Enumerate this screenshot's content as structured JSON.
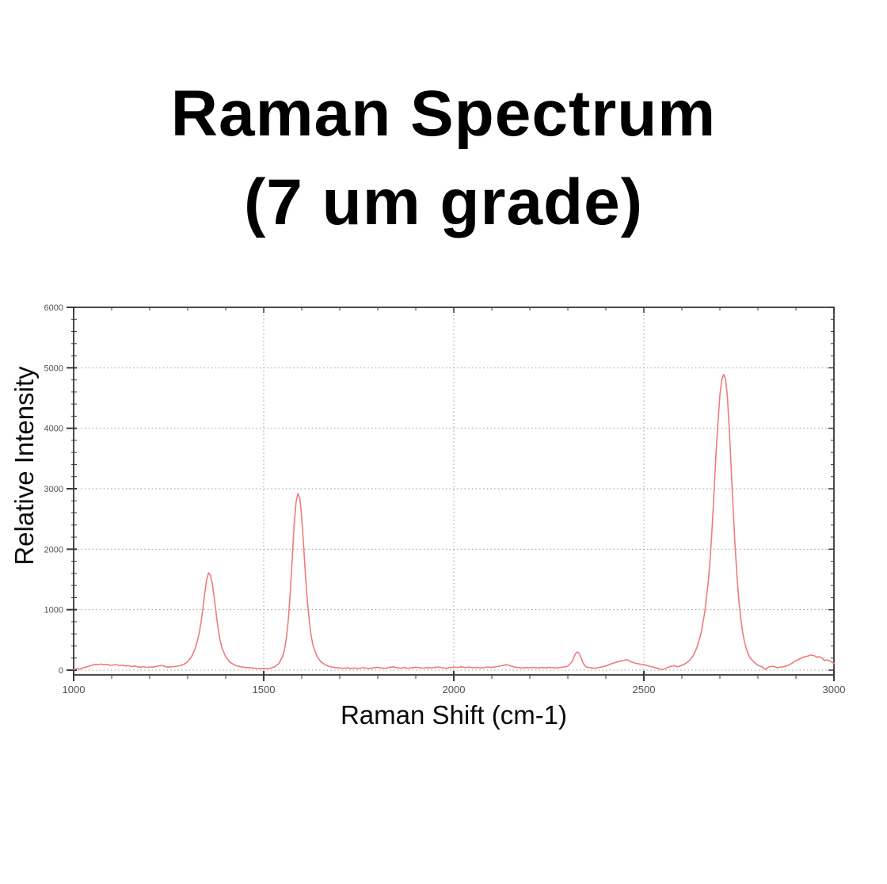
{
  "title": {
    "line1": "Raman Spectrum",
    "line2": "(7 um grade)"
  },
  "chart_data": {
    "type": "line",
    "title": "Raman Spectrum (7 um grade)",
    "xlabel": "Raman Shift (cm-1)",
    "ylabel": "Relative Intensity",
    "xlim": [
      1000,
      3000
    ],
    "ylim": [
      0,
      6000
    ],
    "x_major_ticks": [
      1000,
      1500,
      2000,
      2500,
      3000
    ],
    "x_minor_step": 100,
    "y_major_ticks": [
      0,
      1000,
      2000,
      3000,
      4000,
      5000,
      6000
    ],
    "y_minor_step": 200,
    "grid": "dotted lines at major ticks",
    "legend": "none",
    "colors": {
      "line": "#ee7c7c",
      "frame": "#4a4a4a",
      "tick": "#3a3a3a",
      "grid": "#9a9a9a",
      "tick_label": "#54504c"
    },
    "series": [
      {
        "name": "spectrum",
        "points": [
          [
            1000,
            10
          ],
          [
            1008,
            25
          ],
          [
            1016,
            15
          ],
          [
            1024,
            35
          ],
          [
            1032,
            50
          ],
          [
            1040,
            65
          ],
          [
            1048,
            80
          ],
          [
            1056,
            95
          ],
          [
            1064,
            90
          ],
          [
            1072,
            100
          ],
          [
            1080,
            88
          ],
          [
            1088,
            95
          ],
          [
            1096,
            80
          ],
          [
            1104,
            85
          ],
          [
            1112,
            92
          ],
          [
            1120,
            75
          ],
          [
            1128,
            82
          ],
          [
            1136,
            68
          ],
          [
            1144,
            74
          ],
          [
            1152,
            60
          ],
          [
            1160,
            68
          ],
          [
            1168,
            55
          ],
          [
            1176,
            48
          ],
          [
            1184,
            58
          ],
          [
            1192,
            45
          ],
          [
            1200,
            52
          ],
          [
            1208,
            48
          ],
          [
            1216,
            60
          ],
          [
            1224,
            70
          ],
          [
            1232,
            78
          ],
          [
            1240,
            62
          ],
          [
            1248,
            50
          ],
          [
            1256,
            55
          ],
          [
            1264,
            58
          ],
          [
            1272,
            65
          ],
          [
            1280,
            75
          ],
          [
            1290,
            95
          ],
          [
            1300,
            140
          ],
          [
            1310,
            220
          ],
          [
            1320,
            360
          ],
          [
            1330,
            600
          ],
          [
            1335,
            790
          ],
          [
            1340,
            1020
          ],
          [
            1345,
            1280
          ],
          [
            1350,
            1500
          ],
          [
            1355,
            1610
          ],
          [
            1360,
            1570
          ],
          [
            1365,
            1420
          ],
          [
            1370,
            1190
          ],
          [
            1375,
            930
          ],
          [
            1380,
            690
          ],
          [
            1385,
            500
          ],
          [
            1390,
            370
          ],
          [
            1400,
            220
          ],
          [
            1410,
            140
          ],
          [
            1420,
            95
          ],
          [
            1430,
            70
          ],
          [
            1440,
            55
          ],
          [
            1450,
            45
          ],
          [
            1460,
            40
          ],
          [
            1470,
            35
          ],
          [
            1480,
            30
          ],
          [
            1490,
            25
          ],
          [
            1500,
            30
          ],
          [
            1510,
            25
          ],
          [
            1520,
            35
          ],
          [
            1530,
            60
          ],
          [
            1540,
            110
          ],
          [
            1550,
            230
          ],
          [
            1555,
            350
          ],
          [
            1560,
            550
          ],
          [
            1565,
            850
          ],
          [
            1570,
            1300
          ],
          [
            1575,
            1850
          ],
          [
            1580,
            2400
          ],
          [
            1585,
            2780
          ],
          [
            1590,
            2920
          ],
          [
            1595,
            2840
          ],
          [
            1600,
            2520
          ],
          [
            1605,
            2050
          ],
          [
            1610,
            1550
          ],
          [
            1615,
            1130
          ],
          [
            1620,
            800
          ],
          [
            1625,
            560
          ],
          [
            1630,
            400
          ],
          [
            1640,
            230
          ],
          [
            1650,
            140
          ],
          [
            1660,
            95
          ],
          [
            1670,
            65
          ],
          [
            1680,
            50
          ],
          [
            1690,
            40
          ],
          [
            1700,
            35
          ],
          [
            1710,
            30
          ],
          [
            1720,
            38
          ],
          [
            1730,
            28
          ],
          [
            1740,
            35
          ],
          [
            1750,
            25
          ],
          [
            1760,
            40
          ],
          [
            1770,
            32
          ],
          [
            1780,
            28
          ],
          [
            1790,
            38
          ],
          [
            1800,
            45
          ],
          [
            1810,
            35
          ],
          [
            1820,
            30
          ],
          [
            1830,
            45
          ],
          [
            1840,
            55
          ],
          [
            1850,
            40
          ],
          [
            1860,
            32
          ],
          [
            1870,
            42
          ],
          [
            1880,
            30
          ],
          [
            1890,
            38
          ],
          [
            1900,
            48
          ],
          [
            1910,
            40
          ],
          [
            1920,
            33
          ],
          [
            1930,
            42
          ],
          [
            1940,
            36
          ],
          [
            1950,
            45
          ],
          [
            1960,
            52
          ],
          [
            1970,
            38
          ],
          [
            1980,
            30
          ],
          [
            1990,
            42
          ],
          [
            2000,
            50
          ],
          [
            2010,
            44
          ],
          [
            2020,
            55
          ],
          [
            2030,
            42
          ],
          [
            2040,
            50
          ],
          [
            2050,
            38
          ],
          [
            2060,
            45
          ],
          [
            2070,
            35
          ],
          [
            2080,
            42
          ],
          [
            2090,
            50
          ],
          [
            2100,
            44
          ],
          [
            2110,
            55
          ],
          [
            2120,
            65
          ],
          [
            2130,
            80
          ],
          [
            2140,
            90
          ],
          [
            2150,
            70
          ],
          [
            2160,
            50
          ],
          [
            2170,
            42
          ],
          [
            2180,
            36
          ],
          [
            2190,
            42
          ],
          [
            2200,
            38
          ],
          [
            2210,
            45
          ],
          [
            2220,
            35
          ],
          [
            2230,
            42
          ],
          [
            2240,
            38
          ],
          [
            2250,
            45
          ],
          [
            2260,
            40
          ],
          [
            2270,
            36
          ],
          [
            2280,
            44
          ],
          [
            2290,
            52
          ],
          [
            2300,
            65
          ],
          [
            2310,
            130
          ],
          [
            2315,
            200
          ],
          [
            2320,
            270
          ],
          [
            2325,
            300
          ],
          [
            2330,
            275
          ],
          [
            2335,
            200
          ],
          [
            2340,
            120
          ],
          [
            2345,
            70
          ],
          [
            2350,
            50
          ],
          [
            2360,
            38
          ],
          [
            2370,
            32
          ],
          [
            2380,
            40
          ],
          [
            2390,
            55
          ],
          [
            2400,
            70
          ],
          [
            2410,
            95
          ],
          [
            2420,
            115
          ],
          [
            2430,
            135
          ],
          [
            2440,
            150
          ],
          [
            2450,
            165
          ],
          [
            2455,
            172
          ],
          [
            2460,
            160
          ],
          [
            2465,
            140
          ],
          [
            2470,
            128
          ],
          [
            2480,
            112
          ],
          [
            2490,
            100
          ],
          [
            2500,
            92
          ],
          [
            2510,
            72
          ],
          [
            2520,
            58
          ],
          [
            2530,
            42
          ],
          [
            2540,
            22
          ],
          [
            2550,
            8
          ],
          [
            2560,
            35
          ],
          [
            2570,
            60
          ],
          [
            2580,
            75
          ],
          [
            2585,
            62
          ],
          [
            2590,
            55
          ],
          [
            2600,
            80
          ],
          [
            2610,
            110
          ],
          [
            2620,
            160
          ],
          [
            2630,
            240
          ],
          [
            2640,
            380
          ],
          [
            2650,
            600
          ],
          [
            2660,
            950
          ],
          [
            2670,
            1500
          ],
          [
            2675,
            1900
          ],
          [
            2680,
            2400
          ],
          [
            2685,
            3000
          ],
          [
            2690,
            3600
          ],
          [
            2695,
            4100
          ],
          [
            2700,
            4550
          ],
          [
            2705,
            4800
          ],
          [
            2710,
            4890
          ],
          [
            2715,
            4810
          ],
          [
            2720,
            4500
          ],
          [
            2725,
            3950
          ],
          [
            2730,
            3300
          ],
          [
            2735,
            2650
          ],
          [
            2740,
            2050
          ],
          [
            2745,
            1550
          ],
          [
            2750,
            1150
          ],
          [
            2755,
            850
          ],
          [
            2760,
            620
          ],
          [
            2765,
            460
          ],
          [
            2770,
            340
          ],
          [
            2775,
            260
          ],
          [
            2780,
            200
          ],
          [
            2790,
            130
          ],
          [
            2800,
            80
          ],
          [
            2810,
            55
          ],
          [
            2820,
            15
          ],
          [
            2830,
            55
          ],
          [
            2840,
            65
          ],
          [
            2850,
            40
          ],
          [
            2860,
            50
          ],
          [
            2870,
            60
          ],
          [
            2880,
            80
          ],
          [
            2890,
            115
          ],
          [
            2900,
            155
          ],
          [
            2910,
            185
          ],
          [
            2920,
            215
          ],
          [
            2930,
            230
          ],
          [
            2940,
            250
          ],
          [
            2950,
            235
          ],
          [
            2955,
            210
          ],
          [
            2960,
            225
          ],
          [
            2970,
            195
          ],
          [
            2975,
            155
          ],
          [
            2980,
            170
          ],
          [
            2990,
            150
          ],
          [
            3000,
            110
          ]
        ]
      }
    ]
  }
}
